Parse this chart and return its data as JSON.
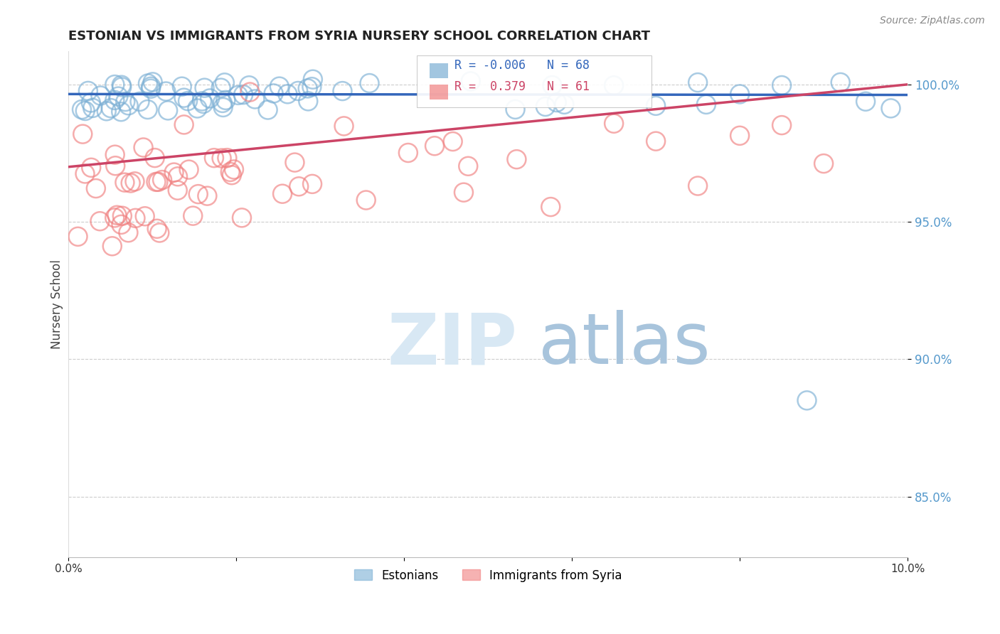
{
  "title": "ESTONIAN VS IMMIGRANTS FROM SYRIA NURSERY SCHOOL CORRELATION CHART",
  "source": "Source: ZipAtlas.com",
  "ylabel": "Nursery School",
  "ytick_values": [
    0.85,
    0.9,
    0.95,
    1.0
  ],
  "xlim": [
    0.0,
    0.1
  ],
  "ylim": [
    0.828,
    1.012
  ],
  "legend_estonian": "Estonians",
  "legend_syrian": "Immigrants from Syria",
  "R_estonian": -0.006,
  "N_estonian": 68,
  "R_syrian": 0.379,
  "N_syrian": 61,
  "blue_color": "#7BAFD4",
  "pink_color": "#F08080",
  "blue_line_color": "#3366BB",
  "pink_line_color": "#CC4466",
  "background_color": "#FFFFFF",
  "ytick_color": "#5599CC",
  "grid_color": "#CCCCCC"
}
